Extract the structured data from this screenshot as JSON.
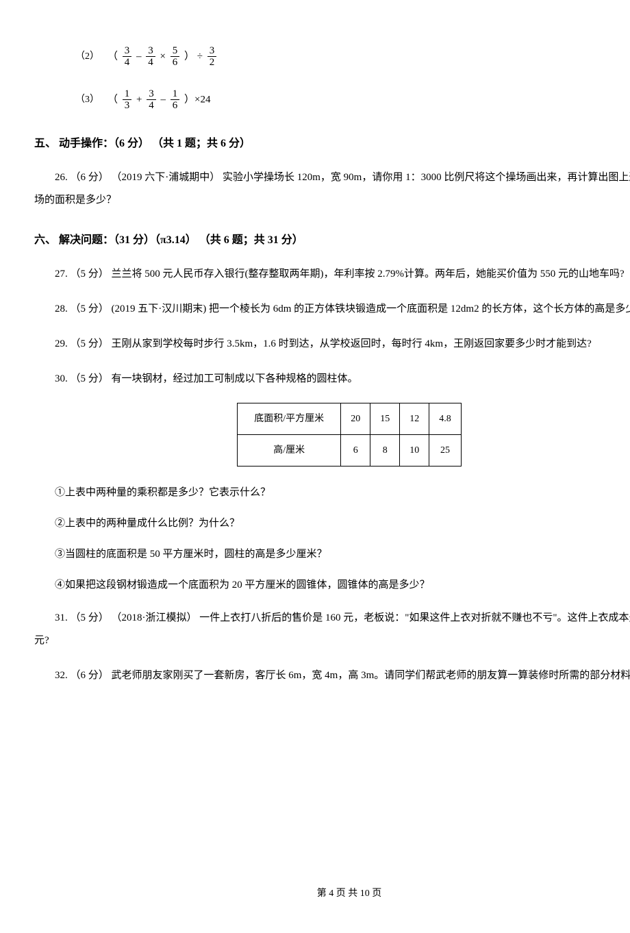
{
  "equations": {
    "eq2": {
      "label": "（2）",
      "f1_num": "3",
      "f1_den": "4",
      "f2_num": "3",
      "f2_den": "4",
      "f3_num": "5",
      "f3_den": "6",
      "f4_num": "3",
      "f4_den": "2"
    },
    "eq3": {
      "label": "（3）",
      "f1_num": "1",
      "f1_den": "3",
      "f2_num": "3",
      "f2_den": "4",
      "f3_num": "1",
      "f3_den": "6",
      "tail": "）×24"
    }
  },
  "section5": {
    "heading": "五、 动手操作：（6 分） （共 1 题；共 6 分）",
    "q26": "26. （6 分） （2019 六下·浦城期中） 实验小学操场长 120m，宽 90m，请你用 1：3000 比例尺将这个操场画出来，再计算出图上这个操场的面积是多少？"
  },
  "section6": {
    "heading": "六、 解决问题：（31 分）（π3.14） （共 6 题；共 31 分）",
    "q27": "27. （5 分） 兰兰将 500 元人民币存入银行(整存整取两年期)，年利率按 2.79%计算。两年后，她能买价值为 550 元的山地车吗?",
    "q28": "28. （5 分） (2019 五下·汉川期末) 把一个棱长为 6dm 的正方体铁块锻造成一个底面积是 12dm2 的长方体，这个长方体的高是多少分米?",
    "q29": "29. （5 分） 王刚从家到学校每时步行 3.5km，1.6 时到达，从学校返回时，每时行 4km，王刚返回家要多少时才能到达?",
    "q30": {
      "intro": "30. （5 分） 有一块钢材，经过加工可制成以下各种规格的圆柱体。",
      "table": {
        "row1_header": "底面积/平方厘米",
        "row1": [
          "20",
          "15",
          "12",
          "4.8"
        ],
        "row2_header": "高/厘米",
        "row2": [
          "6",
          "8",
          "10",
          "25"
        ]
      },
      "sub1": "①上表中两种量的乘积都是多少？它表示什么？",
      "sub2": "②上表中的两种量成什么比例？为什么？",
      "sub3": "③当圆柱的底面积是 50 平方厘米时，圆柱的高是多少厘米？",
      "sub4": "④如果把这段钢材锻造成一个底面积为 20 平方厘米的圆锥体，圆锥体的高是多少？"
    },
    "q31": "31. （5 分） （2018·浙江模拟） 一件上衣打八折后的售价是 160 元，老板说：\"如果这件上衣对折就不赚也不亏\"。这件上衣成本是多少元?",
    "q32": "32. （6 分） 武老师朋友家刚买了一套新房，客厅长 6m，宽 4m，高 3m。请同学们帮武老师的朋友算一算装修时所需的部分材料。"
  },
  "footer": "第 4 页 共 10 页"
}
